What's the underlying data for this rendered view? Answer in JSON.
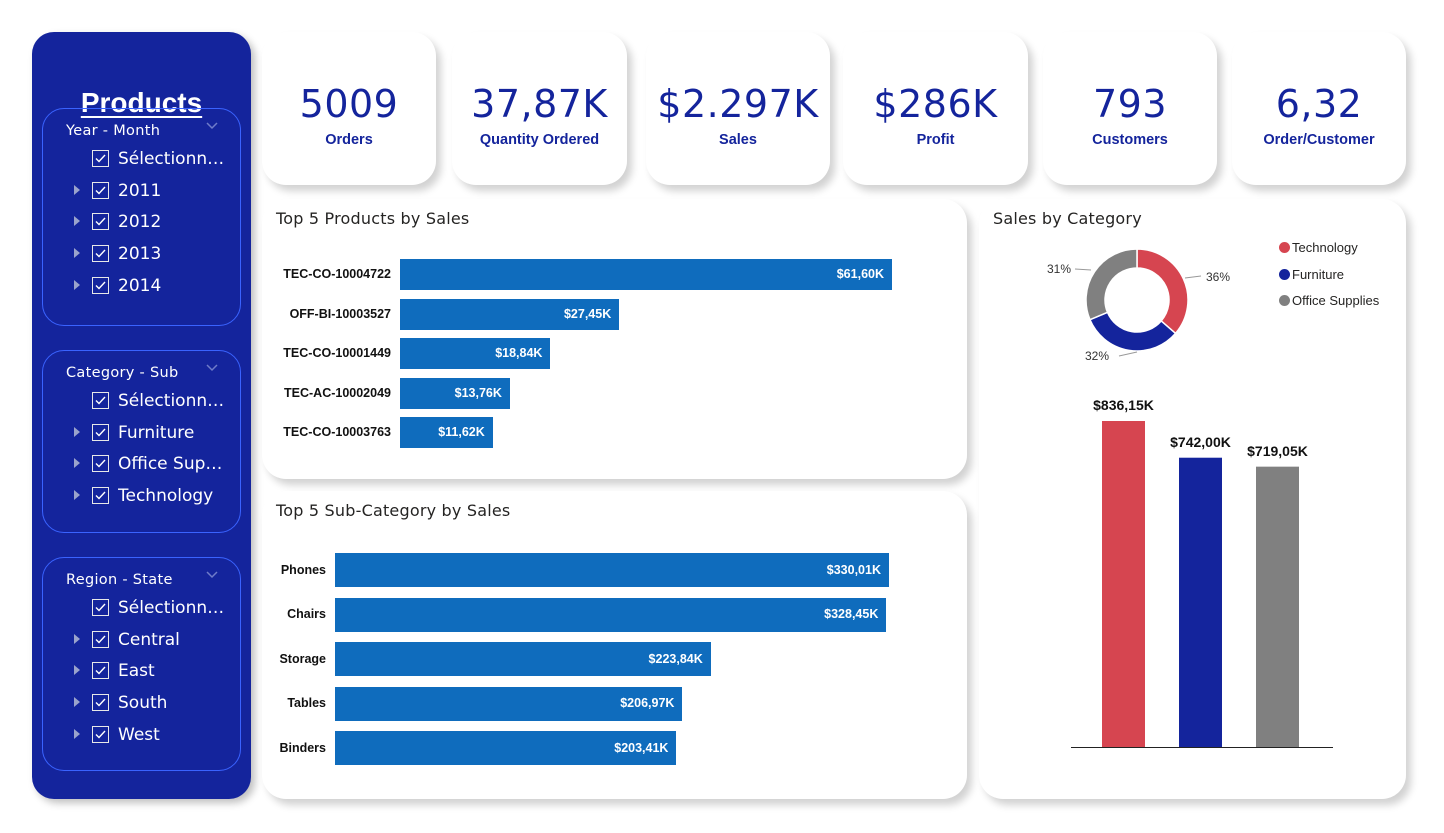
{
  "sidebar": {
    "title": "Products",
    "slicers": [
      {
        "header": "Year - Month",
        "items": [
          {
            "label": "Sélectionner tout",
            "expandable": false
          },
          {
            "label": "2011",
            "expandable": true
          },
          {
            "label": "2012",
            "expandable": true
          },
          {
            "label": "2013",
            "expandable": true
          },
          {
            "label": "2014",
            "expandable": true
          }
        ]
      },
      {
        "header": "Category - Sub",
        "items": [
          {
            "label": "Sélectionner tout",
            "expandable": false
          },
          {
            "label": "Furniture",
            "expandable": true
          },
          {
            "label": "Office Supplies",
            "expandable": true
          },
          {
            "label": "Technology",
            "expandable": true
          }
        ]
      },
      {
        "header": "Region - State",
        "items": [
          {
            "label": "Sélectionner tout",
            "expandable": false
          },
          {
            "label": "Central",
            "expandable": true
          },
          {
            "label": "East",
            "expandable": true
          },
          {
            "label": "South",
            "expandable": true
          },
          {
            "label": "West",
            "expandable": true
          }
        ]
      }
    ]
  },
  "kpis": [
    {
      "value": "5009",
      "label": "Orders"
    },
    {
      "value": "37,87K",
      "label": "Quantity Ordered"
    },
    {
      "value": "$2.297K",
      "label": "Sales"
    },
    {
      "value": "$286K",
      "label": "Profit"
    },
    {
      "value": "793",
      "label": "Customers"
    },
    {
      "value": "6,32",
      "label": "Order/Customer"
    }
  ],
  "colors": {
    "brand": "#14249c",
    "bar": "#0f6cbd",
    "technology": "#d64550",
    "furniture": "#14249c",
    "office_supplies": "#808080"
  },
  "chart_data": [
    {
      "type": "bar",
      "orientation": "horizontal",
      "title": "Top 5 Products by Sales",
      "categories": [
        "TEC-CO-10004722",
        "OFF-BI-10003527",
        "TEC-CO-10001449",
        "TEC-AC-10002049",
        "TEC-CO-10003763"
      ],
      "values": [
        61.6,
        27.45,
        18.84,
        13.76,
        11.62
      ],
      "labels": [
        "$61,60K",
        "$27,45K",
        "$18,84K",
        "$13,76K",
        "$11,62K"
      ],
      "unit": "K$"
    },
    {
      "type": "bar",
      "orientation": "horizontal",
      "title": "Top 5 Sub-Category by Sales",
      "categories": [
        "Phones",
        "Chairs",
        "Storage",
        "Tables",
        "Binders"
      ],
      "values": [
        330.01,
        328.45,
        223.84,
        206.97,
        203.41
      ],
      "labels": [
        "$330,01K",
        "$328,45K",
        "$223,84K",
        "$206,97K",
        "$203,41K"
      ],
      "unit": "K$"
    },
    {
      "type": "pie",
      "variant": "donut",
      "title": "Sales by Category",
      "categories": [
        "Technology",
        "Furniture",
        "Office Supplies"
      ],
      "values": [
        36,
        32,
        31
      ],
      "labels": [
        "36%",
        "32%",
        "31%"
      ],
      "legend": "right"
    },
    {
      "type": "bar",
      "orientation": "vertical",
      "categories": [
        "Technology",
        "Furniture",
        "Office Supplies"
      ],
      "values": [
        836.15,
        742.0,
        719.05
      ],
      "labels": [
        "$836,15K",
        "$742,00K",
        "$719,05K"
      ],
      "unit": "K$"
    }
  ]
}
